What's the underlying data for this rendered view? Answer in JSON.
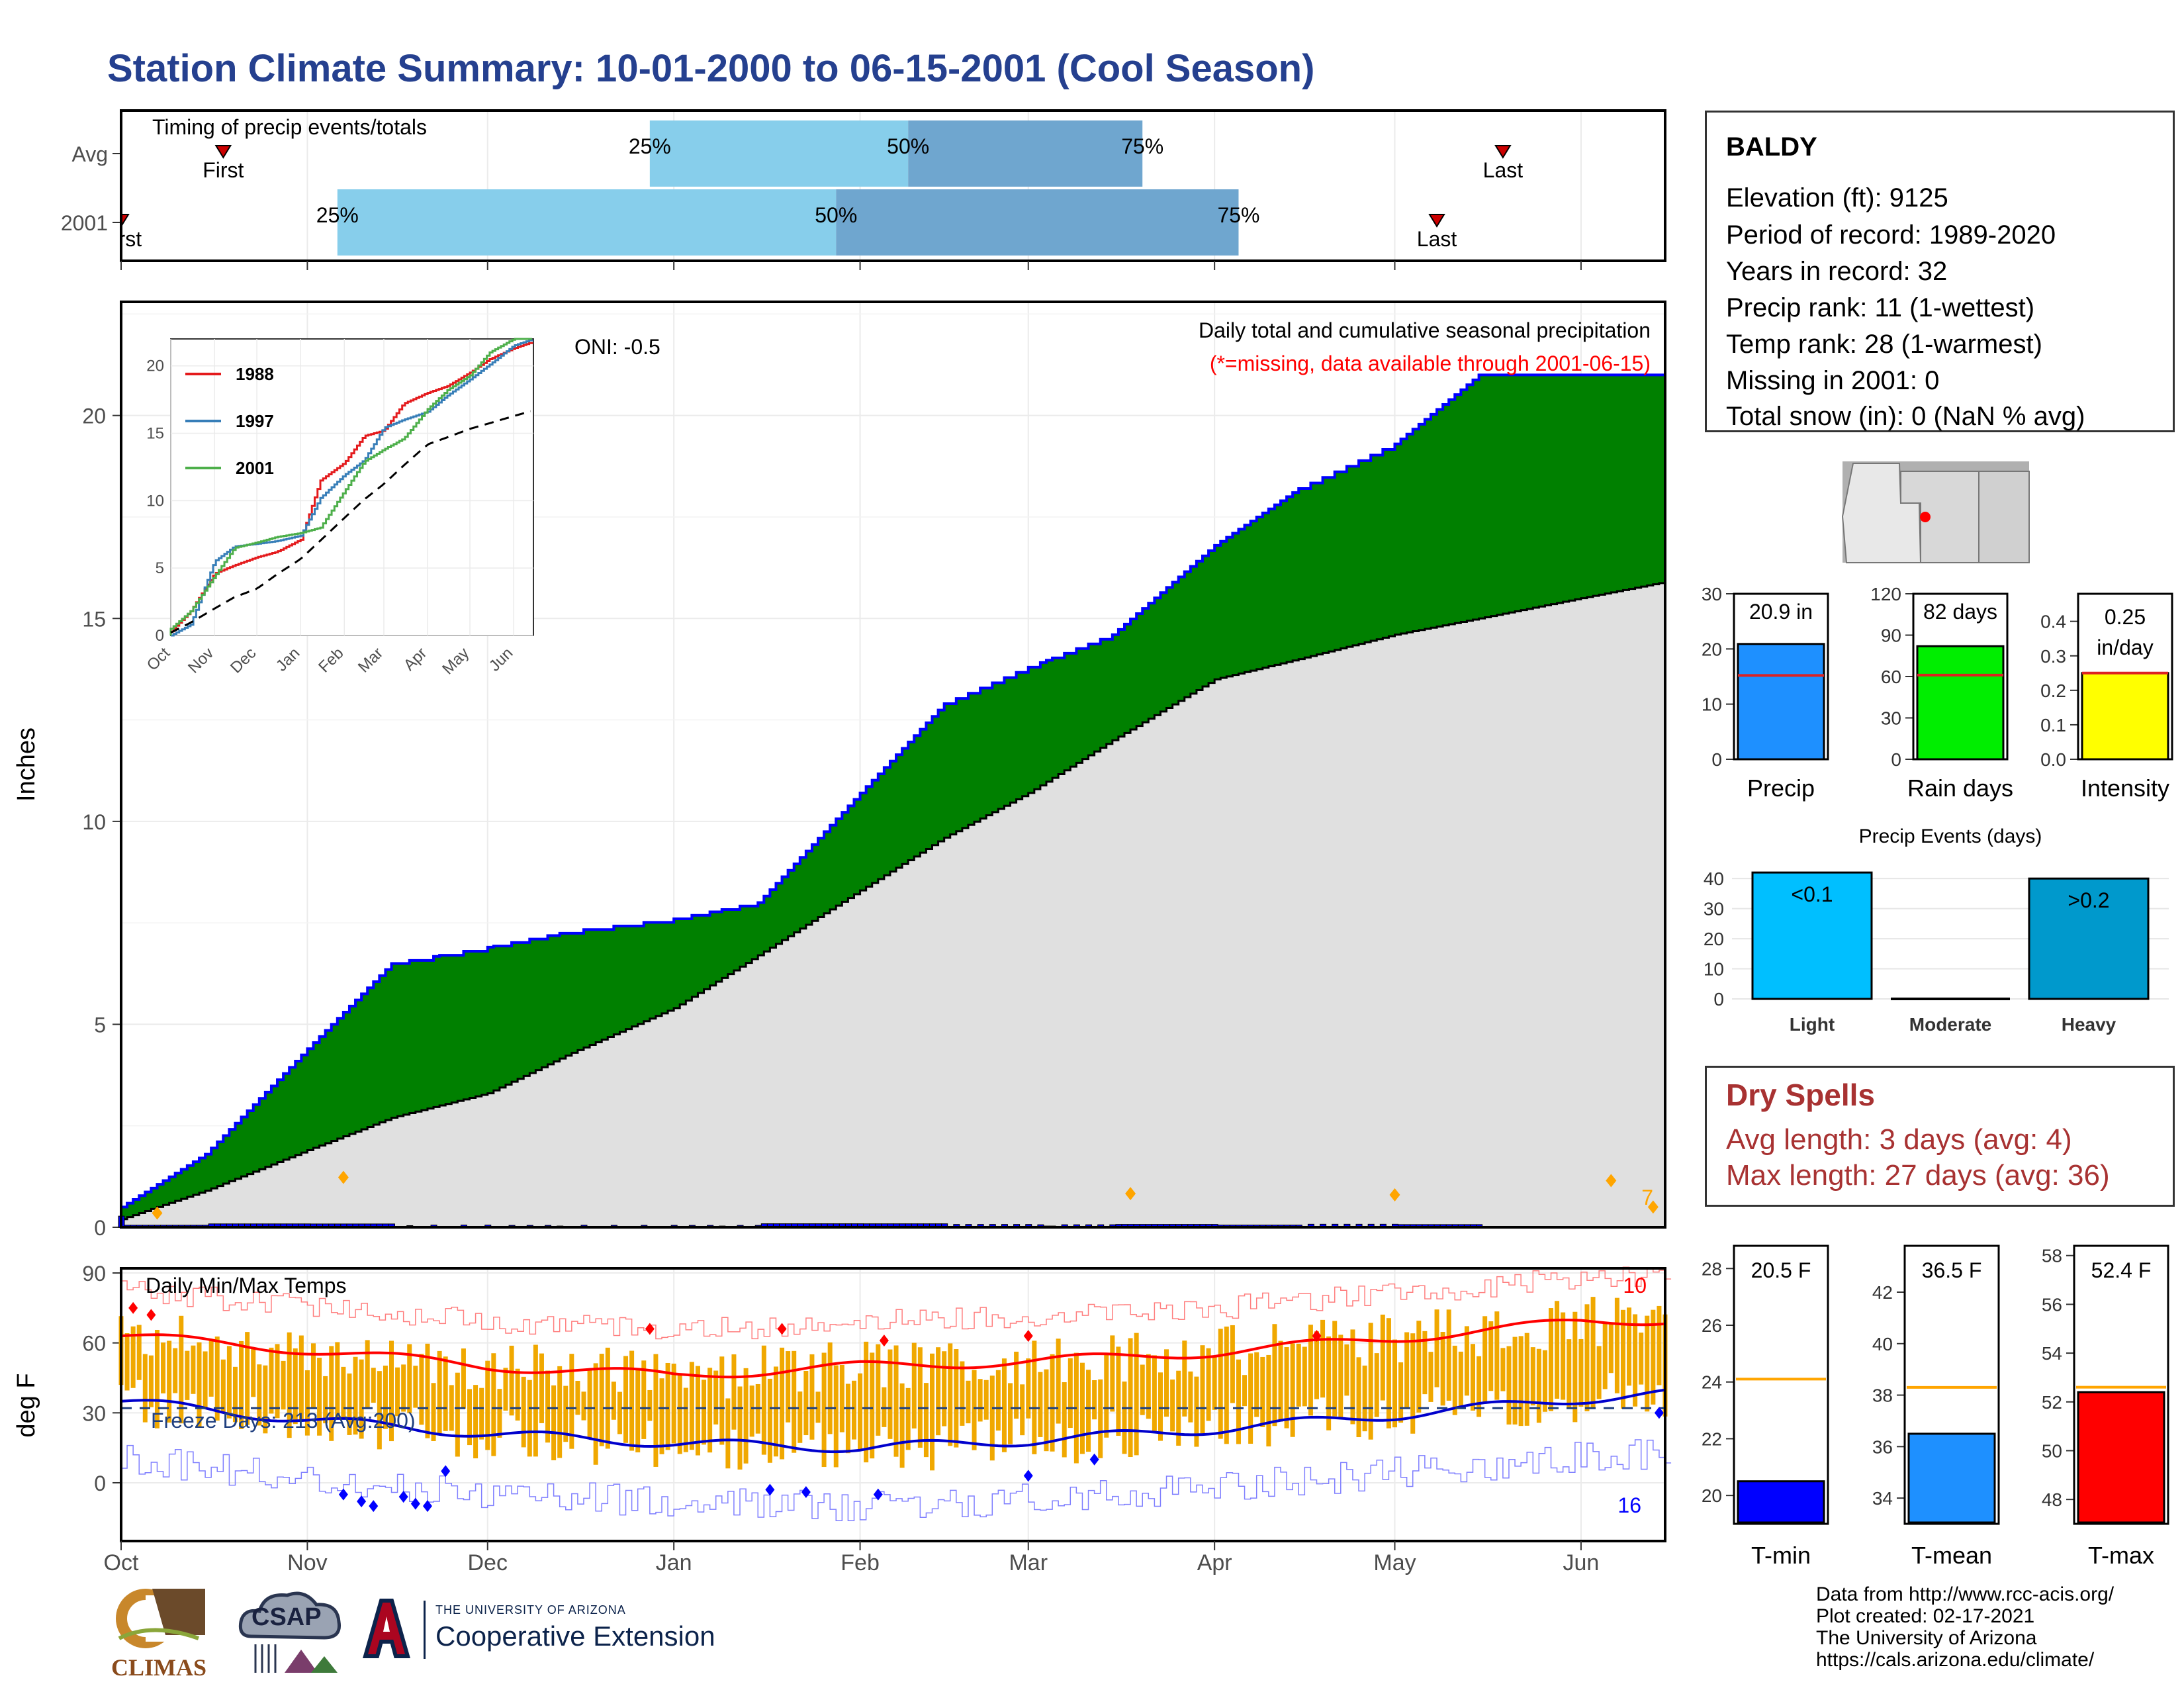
{
  "title": "Station Climate Summary: 10-01-2000 to 06-15-2001 (Cool Season)",
  "month_labels": [
    "Oct",
    "Nov",
    "Dec",
    "Jan",
    "Feb",
    "Mar",
    "Apr",
    "May",
    "Jun"
  ],
  "timing": {
    "label": "Timing of precip events/totals",
    "rows": [
      {
        "name": "Avg",
        "first_label": "First",
        "last_label": "Last",
        "first_day": 17,
        "last_day": 230,
        "q25": 88,
        "q50": 131,
        "q75": 170,
        "q25_label": "25%",
        "q50_label": "50%",
        "q75_label": "75%"
      },
      {
        "name": "2001",
        "first_label": "First",
        "last_label": "Last",
        "first_day": 0,
        "last_day": 219,
        "q25": 36,
        "q50": 119,
        "q75": 186,
        "q25_label": "25%",
        "q50_label": "50%",
        "q75_label": "75%"
      }
    ]
  },
  "precip_panel": {
    "ylabel": "Inches",
    "subtitle": "Daily total and cumulative seasonal precipitation",
    "missing_note": "(*=missing, data available through 2001-06-15)",
    "oni": "ONI: -0.5",
    "count_label": "7",
    "ylim": [
      0,
      22.8
    ],
    "yticks": [
      0,
      5,
      10,
      15,
      20
    ]
  },
  "inset": {
    "legend": [
      "1988",
      "1997",
      "2001"
    ],
    "colors": [
      "#e41a1c",
      "#377eb8",
      "#4daf4a"
    ],
    "yticks": [
      0,
      5,
      10,
      15,
      20
    ],
    "months": [
      "Oct",
      "Nov",
      "Dec",
      "Jan",
      "Feb",
      "Mar",
      "Apr",
      "May",
      "Jun"
    ]
  },
  "temp_panel": {
    "title": "Daily Min/Max Temps",
    "ylabel": "deg F",
    "freeze_label": "Freeze Days: 213 (Avg:200)",
    "count_high": "10",
    "count_low": "16",
    "ylim": [
      -25,
      92
    ],
    "yticks": [
      0,
      30,
      60,
      90
    ]
  },
  "station": {
    "name": "BALDY",
    "lines": [
      "Elevation (ft): 9125",
      "Period of record: 1989-2020",
      "Years in record: 32",
      "Precip rank: 11 (1-wettest)",
      "Temp rank: 28 (1-warmest)",
      "Missing in 2001: 0",
      "Total snow (in): 0 (NaN % avg)"
    ]
  },
  "mini_bars": [
    {
      "label": "Precip",
      "value_label": "20.9 in",
      "value": 20.9,
      "avg": 15.2,
      "ylim": [
        0,
        30
      ],
      "ticks": [
        0,
        10,
        20,
        30
      ],
      "color": "#1e90ff"
    },
    {
      "label": "Rain days",
      "value_label": "82 days",
      "value": 82,
      "avg": 61,
      "ylim": [
        0,
        120
      ],
      "ticks": [
        0,
        30,
        60,
        90,
        120
      ],
      "color": "#00ee00"
    },
    {
      "label": "Intensity",
      "value_label": "0.25 in/day",
      "value_line1": "0.25",
      "value_line2": "in/day",
      "value": 0.25,
      "avg": 0.25,
      "ylim": [
        0,
        0.48
      ],
      "ticks": [
        0.0,
        0.1,
        0.2,
        0.3,
        0.4
      ],
      "color": "#ffff00"
    }
  ],
  "precip_events": {
    "title": "Precip Events (days)",
    "categories": [
      "Light",
      "Moderate",
      "Heavy"
    ],
    "labels": [
      "<0.1",
      "",
      ">0.2"
    ],
    "values": [
      42,
      0,
      40
    ],
    "ylim": [
      0,
      44
    ],
    "ticks": [
      0,
      10,
      20,
      30,
      40
    ],
    "colors": [
      "#00bfff",
      "#1a8fbf",
      "#0099cc"
    ]
  },
  "dry_spells": {
    "title": "Dry Spells",
    "avg_line": "Avg length: 3 days (avg: 4)",
    "max_line": "Max length: 27 days (avg: 36)"
  },
  "temp_bars": [
    {
      "label": "T-min",
      "value_label": "20.5 F",
      "value": 20.5,
      "avg": 24.1,
      "ylim": [
        19,
        28.8
      ],
      "ticks": [
        20,
        22,
        24,
        26,
        28
      ],
      "color": "#0000ff"
    },
    {
      "label": "T-mean",
      "value_label": "36.5 F",
      "value": 36.5,
      "avg": 38.3,
      "ylim": [
        33,
        43.8
      ],
      "ticks": [
        34,
        36,
        38,
        40,
        42
      ],
      "color": "#1e90ff"
    },
    {
      "label": "T-max",
      "value_label": "52.4 F",
      "value": 52.4,
      "avg": 52.6,
      "ylim": [
        47,
        58.4
      ],
      "ticks": [
        48,
        50,
        52,
        54,
        56,
        58
      ],
      "color": "#ff0000"
    }
  ],
  "credits": [
    "Data from http://www.rcc-acis.org/",
    "Plot created: 02-17-2021",
    "The University of Arizona",
    "https://cals.arizona.edu/climate/"
  ],
  "logos": {
    "climas": "CLIMAS",
    "csap": "CSAP",
    "ua_small": "THE UNIVERSITY OF ARIZONA",
    "ua_big": "Cooperative Extension"
  },
  "chart_data": [
    {
      "type": "area",
      "title": "Daily total and cumulative seasonal precipitation",
      "ylabel": "Inches",
      "ylim": [
        0,
        22.8
      ],
      "x": [
        "10-01",
        "10-15",
        "11-01",
        "11-15",
        "12-01",
        "12-15",
        "01-01",
        "01-15",
        "02-01",
        "02-15",
        "03-01",
        "03-15",
        "04-01",
        "04-15",
        "05-01",
        "05-15",
        "06-01",
        "06-15"
      ],
      "series": [
        {
          "name": "2001",
          "values": [
            0.5,
            1.8,
            4.4,
            6.5,
            6.9,
            7.3,
            7.6,
            8.0,
            10.7,
            12.9,
            13.8,
            14.6,
            16.8,
            18.2,
            19.3,
            21.0,
            21.0,
            21.0
          ]
        },
        {
          "values": [
            0.2,
            0.9,
            1.9,
            2.7,
            3.3,
            4.3,
            5.4,
            6.7,
            8.3,
            9.6,
            10.7,
            12.0,
            13.5,
            14.0,
            14.6,
            15.0,
            15.5,
            15.9
          ]
        }
      ]
    },
    {
      "type": "line",
      "title": "Daily Min/Max Temps",
      "ylabel": "deg F",
      "ylim": [
        -25,
        92
      ],
      "x": [
        "10-01",
        "11-01",
        "12-01",
        "01-01",
        "02-01",
        "03-01",
        "04-01",
        "05-01",
        "06-01",
        "06-15"
      ],
      "series": [
        {
          "values": [
            63,
            57,
            50,
            46,
            50,
            52,
            56,
            62,
            69,
            70
          ]
        },
        {
          "values": [
            35,
            27,
            21,
            17,
            15,
            18,
            23,
            29,
            36,
            38
          ]
        }
      ]
    }
  ]
}
